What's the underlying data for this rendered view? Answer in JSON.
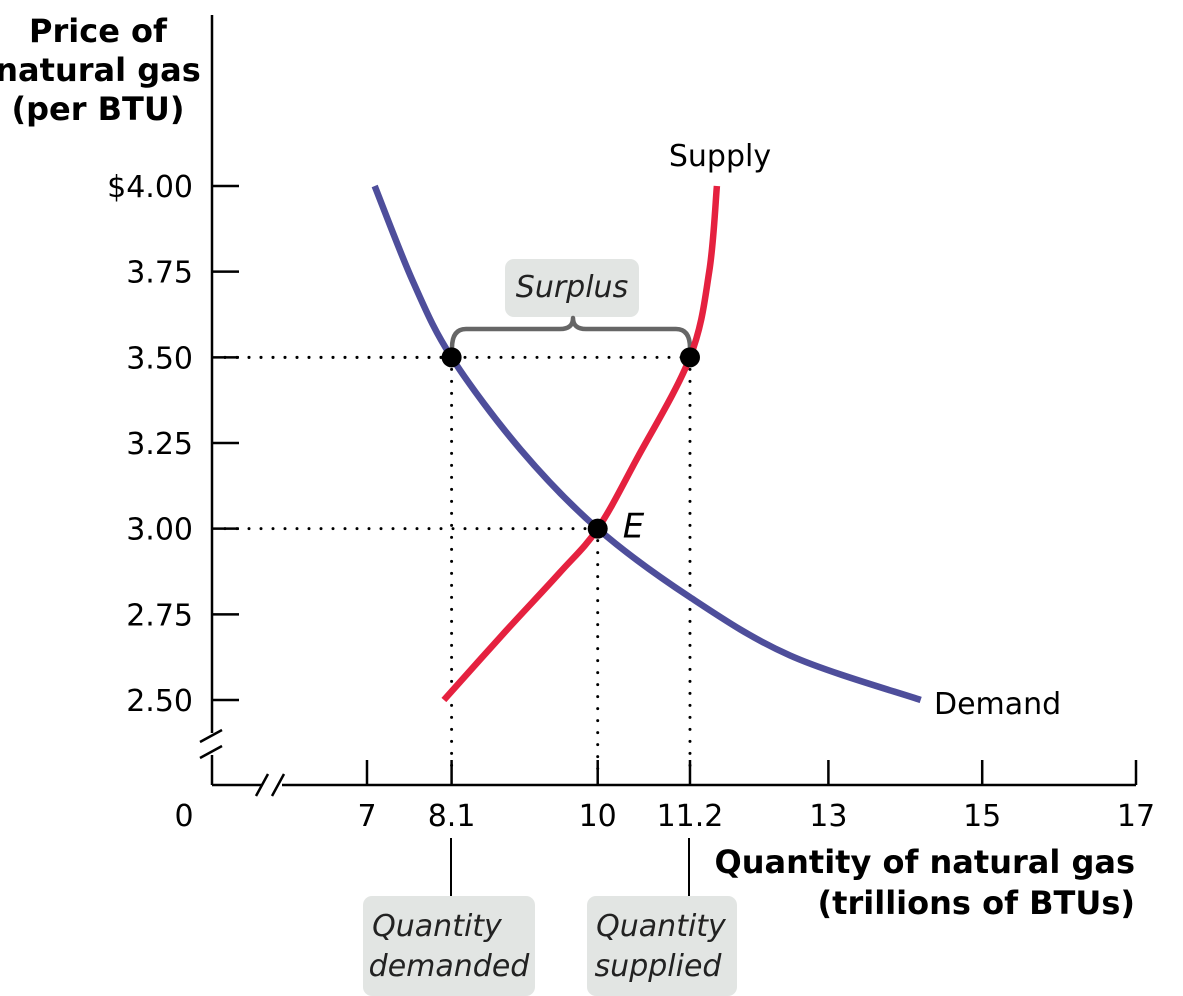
{
  "chart_data": {
    "type": "line",
    "ylabel": [
      "Price of",
      "natural gas",
      "(per BTU)"
    ],
    "xlabel": [
      "Quantity of natural gas",
      "(trillions of BTUs)"
    ],
    "origin_label": "0",
    "y_ticks": [
      {
        "value": 4.0,
        "label": "$4.00"
      },
      {
        "value": 3.75,
        "label": "3.75"
      },
      {
        "value": 3.5,
        "label": "3.50"
      },
      {
        "value": 3.25,
        "label": "3.25"
      },
      {
        "value": 3.0,
        "label": "3.00"
      },
      {
        "value": 2.75,
        "label": "2.75"
      },
      {
        "value": 2.5,
        "label": "2.50"
      }
    ],
    "x_ticks": [
      {
        "value": 7,
        "label": "7"
      },
      {
        "value": 8.1,
        "label": "8.1"
      },
      {
        "value": 10,
        "label": "10"
      },
      {
        "value": 11.2,
        "label": "11.2"
      },
      {
        "value": 13,
        "label": "13"
      },
      {
        "value": 15,
        "label": "15"
      },
      {
        "value": 17,
        "label": "17"
      }
    ],
    "xlim": [
      6,
      17
    ],
    "ylim": [
      2.5,
      4.0
    ],
    "axis_break": true,
    "series": [
      {
        "name": "Supply",
        "color": "#e5213f",
        "x": [
          8.0,
          8.8,
          9.5,
          10.0,
          10.5,
          11.2,
          11.45,
          11.55
        ],
        "y": [
          2.5,
          2.7,
          2.87,
          3.0,
          3.2,
          3.5,
          3.75,
          4.0
        ]
      },
      {
        "name": "Demand",
        "color": "#4e4e9b",
        "x": [
          7.1,
          7.6,
          8.1,
          9.0,
          10.0,
          11.2,
          12.5,
          14.2
        ],
        "y": [
          4.0,
          3.72,
          3.5,
          3.23,
          3.0,
          2.8,
          2.63,
          2.5
        ]
      }
    ],
    "points": [
      {
        "x": 8.1,
        "y": 3.5,
        "label": ""
      },
      {
        "x": 11.2,
        "y": 3.5,
        "label": ""
      },
      {
        "x": 10.0,
        "y": 3.0,
        "label": "E"
      }
    ],
    "guides": [
      {
        "x": 8.1,
        "y": 3.5
      },
      {
        "x": 11.2,
        "y": 3.5
      },
      {
        "x": 10.0,
        "y": 3.0
      }
    ],
    "annotations": {
      "surplus": "Surplus",
      "quantity_demanded": [
        "Quantity",
        "demanded"
      ],
      "quantity_supplied": [
        "Quantity",
        "supplied"
      ]
    },
    "colors": {
      "supply": "#e5213f",
      "demand": "#4e4e9b",
      "axis": "#000000",
      "callout_bg": "#e2e5e3",
      "brace": "#666666"
    }
  }
}
